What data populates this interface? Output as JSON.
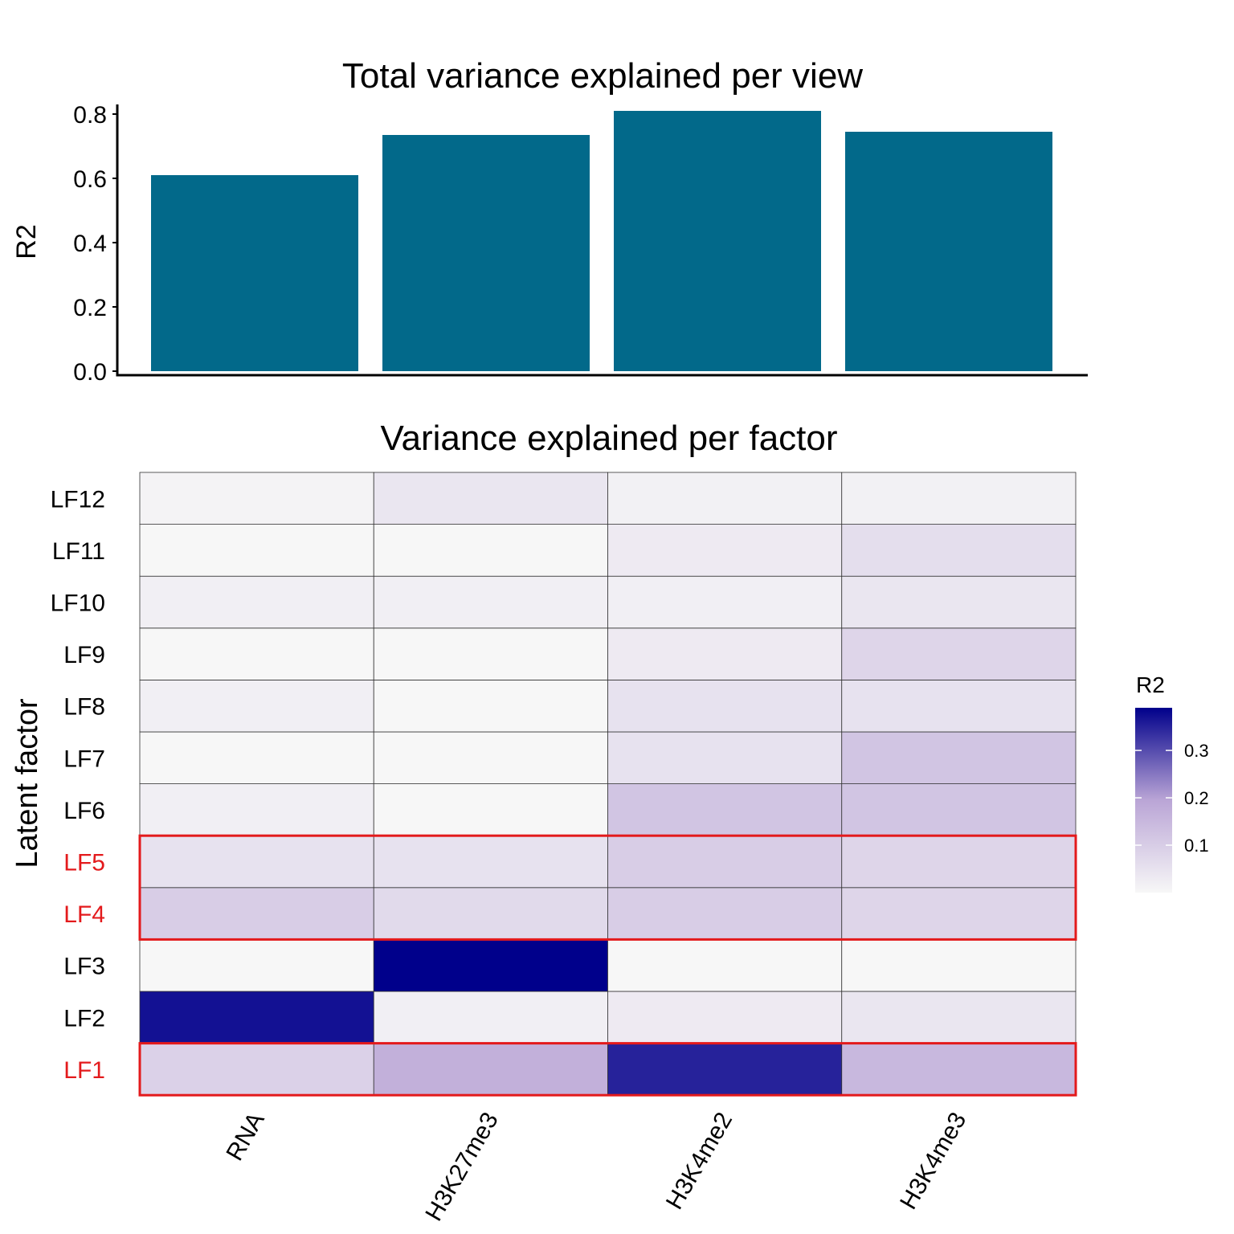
{
  "colors": {
    "bar_fill": "#02698A",
    "heat_low": "#F7F7F7",
    "heat_mid": "#BAA5D6",
    "heat_high": "#00008B",
    "highlight": "#E31A1C"
  },
  "chart_data": [
    {
      "type": "bar",
      "title": "Total variance explained per view",
      "xlabel": "",
      "ylabel": "R2",
      "categories": [
        "RNA",
        "H3K27me3",
        "H3K4me2",
        "H3K4me3"
      ],
      "values": [
        0.61,
        0.735,
        0.81,
        0.745
      ],
      "ylim": [
        0,
        0.82
      ],
      "yticks": [
        "0.0",
        "0.2",
        "0.4",
        "0.6",
        "0.8"
      ],
      "grid": false
    },
    {
      "type": "heatmap",
      "title": "Variance explained per factor",
      "xlabel": "",
      "ylabel": "Latent factor",
      "x_categories": [
        "RNA",
        "H3K27me3",
        "H3K4me2",
        "H3K4me3"
      ],
      "y_categories": [
        "LF1",
        "LF2",
        "LF3",
        "LF4",
        "LF5",
        "LF6",
        "LF7",
        "LF8",
        "LF9",
        "LF10",
        "LF11",
        "LF12"
      ],
      "highlighted_factors": [
        "LF1",
        "LF4",
        "LF5"
      ],
      "values": [
        [
          0.09,
          0.17,
          0.35,
          0.15
        ],
        [
          0.37,
          0.02,
          0.03,
          0.04
        ],
        [
          0.0,
          0.39,
          0.0,
          0.0
        ],
        [
          0.1,
          0.07,
          0.1,
          0.08
        ],
        [
          0.05,
          0.05,
          0.1,
          0.08
        ],
        [
          0.02,
          0.0,
          0.12,
          0.12
        ],
        [
          0.0,
          0.0,
          0.05,
          0.12
        ],
        [
          0.02,
          0.0,
          0.05,
          0.05
        ],
        [
          0.0,
          0.0,
          0.03,
          0.08
        ],
        [
          0.02,
          0.02,
          0.02,
          0.04
        ],
        [
          0.0,
          0.0,
          0.03,
          0.06
        ],
        [
          0.01,
          0.04,
          0.015,
          0.015
        ]
      ],
      "legend": {
        "title": "R2",
        "position": "right",
        "range": [
          0,
          0.39
        ],
        "ticks": [
          0.1,
          0.2,
          0.3
        ],
        "tick_labels": [
          "0.1",
          "0.2",
          "0.3"
        ]
      }
    }
  ]
}
